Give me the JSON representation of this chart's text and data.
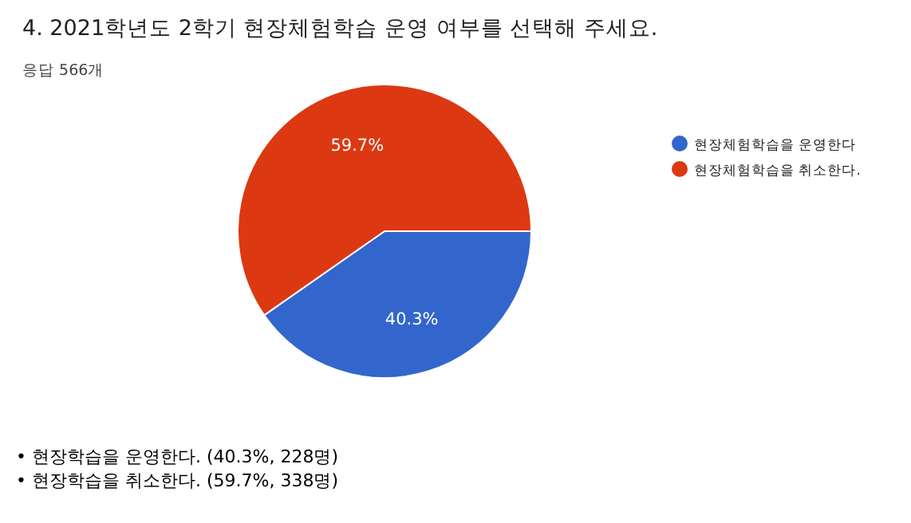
{
  "chart_data": {
    "type": "pie",
    "title": "4. 2021학년도 2학기 현장체험학습 운영 여부를 선택해 주세요.",
    "subtitle": "응답 566개",
    "categories": [
      "현장체험학습을 운영한다",
      "현장체험학습을 취소한다."
    ],
    "values": [
      40.3,
      59.7
    ],
    "colors": [
      "#3366cc",
      "#dc3912"
    ],
    "value_labels": [
      "40.3%",
      "59.7%"
    ],
    "legend": "top right",
    "annotations": [
      "• 현장학습을 운영한다. (40.3%, 228명)",
      "• 현장학습을 취소한다. (59.7%, 338명)"
    ]
  }
}
